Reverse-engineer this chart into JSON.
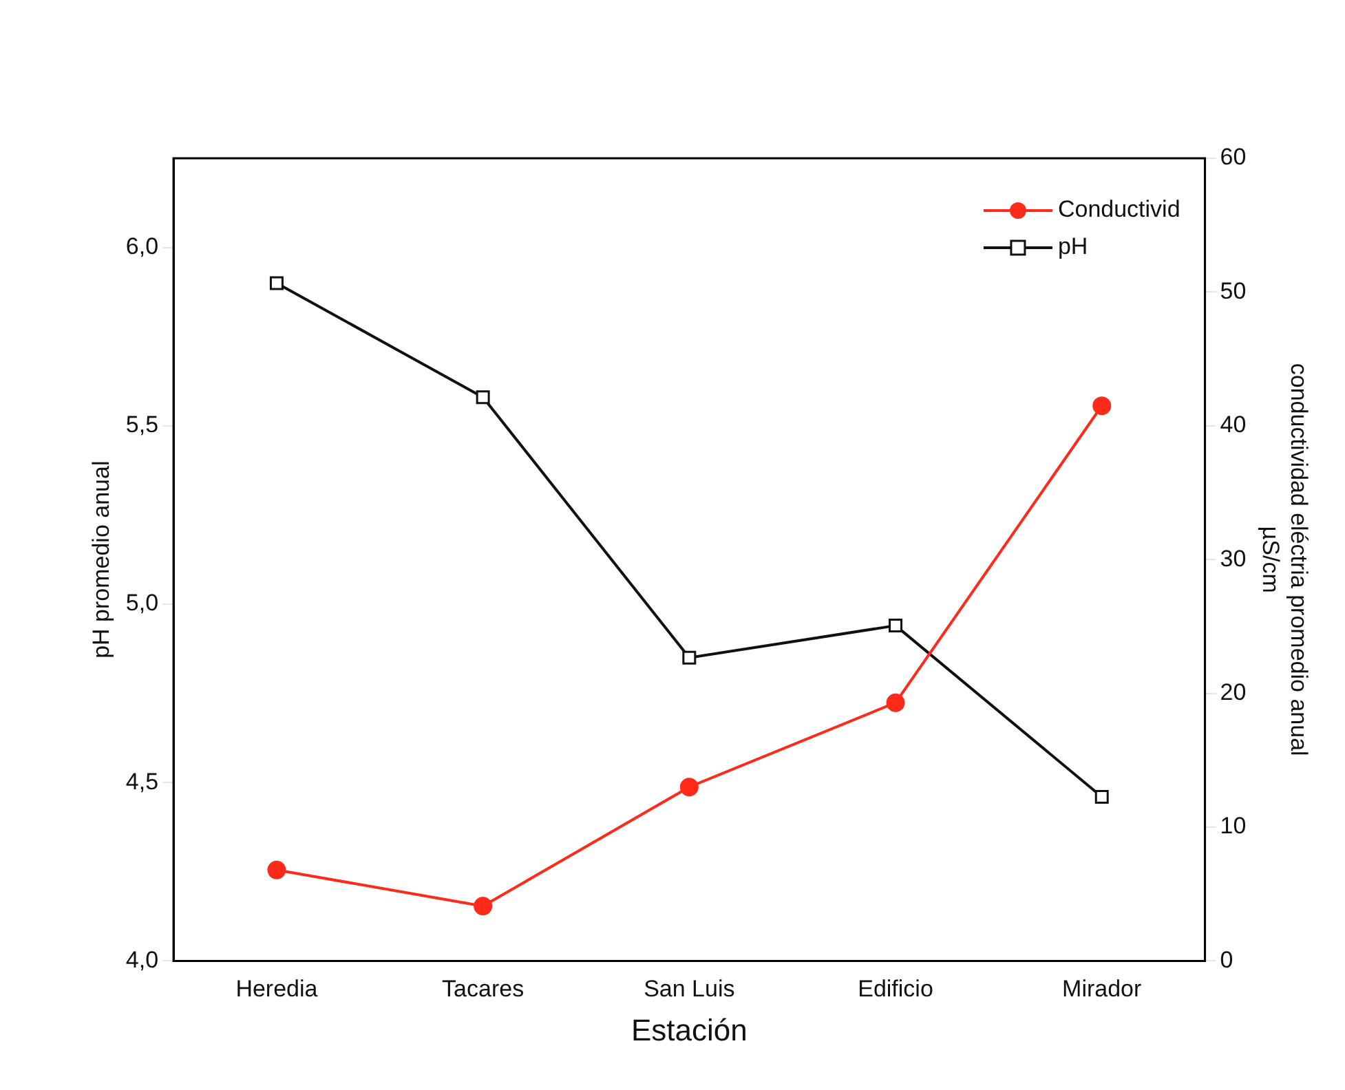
{
  "chart_data": {
    "type": "line",
    "xlabel": "Estación",
    "ylabel": "pH promedio anual",
    "y2label": "conductividad eléctria promedio anual\nµS/cm",
    "categories": [
      "Heredia",
      "Tacares",
      "San Luis",
      "Edificio",
      "Mirador"
    ],
    "series": [
      {
        "name": "Conductivid",
        "color": "#ff2a1a",
        "marker": "circle",
        "axis": "y2",
        "values": [
          6.8,
          4.1,
          13,
          19.3,
          41.5
        ]
      },
      {
        "name": "pH",
        "color": "#111111",
        "marker": "square",
        "values": [
          5.9,
          5.58,
          4.85,
          4.94,
          4.46
        ]
      }
    ],
    "ylim": [
      4,
      6.25
    ],
    "yticks": [
      {
        "value": 4,
        "label": "4,0"
      },
      {
        "value": 4.5,
        "label": "4,5"
      },
      {
        "value": 5,
        "label": "5,0"
      },
      {
        "value": 5.5,
        "label": "5,5"
      },
      {
        "value": 6,
        "label": "6,0"
      }
    ],
    "y2lim": [
      0,
      60
    ],
    "y2ticks": [
      0,
      10,
      20,
      30,
      40,
      50,
      60
    ],
    "grid": false,
    "legend": "top right",
    "line_style": "solid"
  }
}
